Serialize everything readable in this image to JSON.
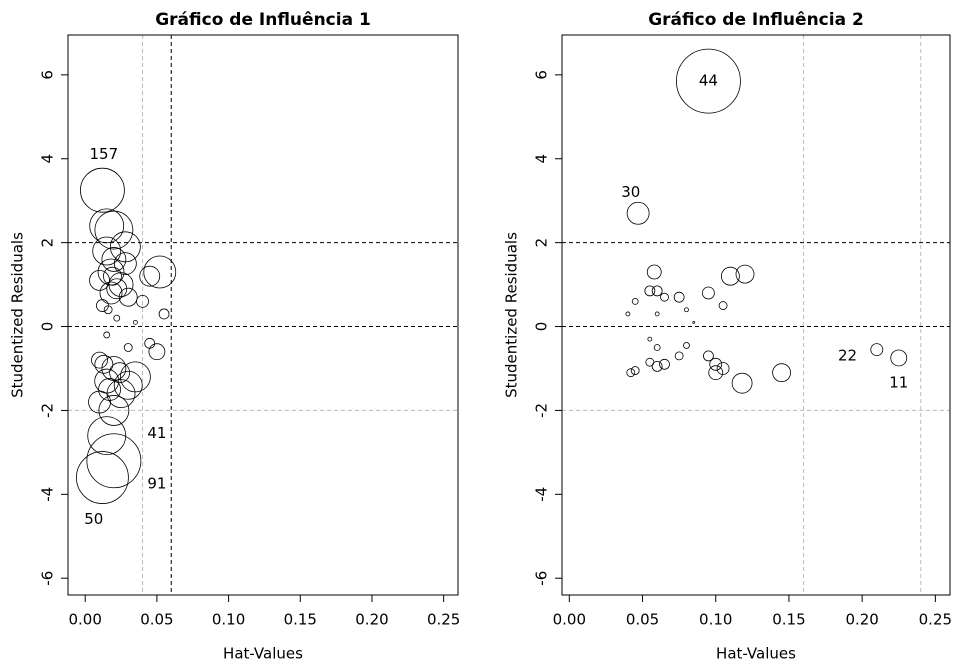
{
  "chart_data": [
    {
      "type": "scatter",
      "title": "Gráfico de Influência 1",
      "xlabel": "Hat-Values",
      "ylabel": "Studentized Residuals",
      "x": [
        0.012,
        0.015,
        0.02,
        0.028,
        0.015,
        0.02,
        0.052,
        0.045,
        0.01,
        0.025,
        0.018,
        0.03,
        0.04,
        0.055,
        0.012,
        0.022,
        0.035,
        0.015,
        0.045,
        0.05,
        0.01,
        0.02,
        0.015,
        0.03,
        0.025,
        0.01,
        0.035,
        0.02,
        0.015,
        0.02,
        0.012,
        0.018,
        0.022,
        0.028,
        0.013,
        0.024,
        0.016,
        0.03,
        0.019,
        0.017
      ],
      "y": [
        3.25,
        2.4,
        2.3,
        1.9,
        1.8,
        1.6,
        1.3,
        1.2,
        1.1,
        1.0,
        0.8,
        0.7,
        0.6,
        0.3,
        0.5,
        0.2,
        0.1,
        -0.2,
        -0.4,
        -0.6,
        -0.8,
        -1.0,
        -1.3,
        -1.4,
        -1.6,
        -1.8,
        -1.2,
        -2.0,
        -2.6,
        -3.2,
        -3.6,
        1.3,
        0.9,
        1.5,
        -0.9,
        -1.1,
        0.4,
        -0.5,
        1.2,
        -1.5
      ],
      "sizes": [
        22,
        17,
        19,
        15,
        14,
        12,
        16,
        10,
        10,
        12,
        11,
        9,
        6,
        5,
        6,
        3,
        2,
        3,
        5,
        8,
        8,
        12,
        12,
        14,
        14,
        11,
        15,
        15,
        19,
        27,
        26,
        13,
        10,
        11,
        9,
        10,
        4,
        4,
        9,
        11
      ],
      "xlim": [
        -0.012,
        0.26
      ],
      "ylim": [
        -6.4,
        6.95
      ],
      "xticks": [
        {
          "value": 0,
          "label": "0.00"
        },
        {
          "value": 0.05,
          "label": "0.05"
        },
        {
          "value": 0.1,
          "label": "0.10"
        },
        {
          "value": 0.15,
          "label": "0.15"
        },
        {
          "value": 0.2,
          "label": "0.20"
        },
        {
          "value": 0.25,
          "label": "0.25"
        }
      ],
      "yticks": [
        -6,
        -4,
        -2,
        0,
        2,
        4,
        6
      ],
      "hlines": [
        {
          "value": 2,
          "color": "#000000"
        },
        {
          "value": 0,
          "color": "#000000"
        },
        {
          "value": -2,
          "color": "#bbbbbb"
        }
      ],
      "vlines": [
        {
          "value": 0.04,
          "color": "#bbbbbb"
        },
        {
          "value": 0.06,
          "color": "#000000"
        }
      ],
      "annotations": [
        {
          "text": "157",
          "x": 0.013,
          "y": 4.1
        },
        {
          "text": "41",
          "x": 0.05,
          "y": -2.55
        },
        {
          "text": "91",
          "x": 0.05,
          "y": -3.75
        },
        {
          "text": "50",
          "x": 0.006,
          "y": -4.6
        }
      ]
    },
    {
      "type": "scatter",
      "title": "Gráfico de Influência 2",
      "xlabel": "Hat-Values",
      "ylabel": "Studentized Residuals",
      "x": [
        0.095,
        0.047,
        0.21,
        0.225,
        0.058,
        0.055,
        0.06,
        0.065,
        0.075,
        0.095,
        0.11,
        0.12,
        0.105,
        0.045,
        0.04,
        0.06,
        0.08,
        0.085,
        0.055,
        0.06,
        0.08,
        0.075,
        0.095,
        0.1,
        0.105,
        0.1,
        0.118,
        0.145,
        0.065,
        0.06,
        0.055,
        0.045,
        0.042
      ],
      "y": [
        5.85,
        2.7,
        -0.55,
        -0.75,
        1.3,
        0.85,
        0.85,
        0.7,
        0.7,
        0.8,
        1.2,
        1.25,
        0.5,
        0.6,
        0.3,
        0.3,
        0.4,
        0.1,
        -0.3,
        -0.5,
        -0.45,
        -0.7,
        -0.7,
        -0.9,
        -1.0,
        -1.1,
        -1.35,
        -1.1,
        -0.9,
        -0.95,
        -0.85,
        -1.05,
        -1.1
      ],
      "sizes": [
        32,
        11,
        6,
        8,
        7,
        5,
        5,
        4,
        5,
        6,
        9,
        9,
        4,
        3,
        2,
        2,
        2,
        1,
        2,
        3,
        3,
        4,
        5,
        6,
        6,
        7,
        10,
        9,
        5,
        5,
        4,
        4,
        4
      ],
      "xlim": [
        -0.005,
        0.26
      ],
      "ylim": [
        -6.4,
        6.95
      ],
      "xticks": [
        {
          "value": 0,
          "label": "0.00"
        },
        {
          "value": 0.05,
          "label": "0.05"
        },
        {
          "value": 0.1,
          "label": "0.10"
        },
        {
          "value": 0.15,
          "label": "0.15"
        },
        {
          "value": 0.2,
          "label": "0.20"
        },
        {
          "value": 0.25,
          "label": "0.25"
        }
      ],
      "yticks": [
        -6,
        -4,
        -2,
        0,
        2,
        4,
        6
      ],
      "hlines": [
        {
          "value": 2,
          "color": "#000000"
        },
        {
          "value": 0,
          "color": "#000000"
        },
        {
          "value": -2,
          "color": "#bbbbbb"
        }
      ],
      "vlines": [
        {
          "value": 0.16,
          "color": "#bbbbbb"
        },
        {
          "value": 0.24,
          "color": "#bbbbbb"
        }
      ],
      "annotations": [
        {
          "text": "44",
          "x": 0.095,
          "y": 5.85
        },
        {
          "text": "30",
          "x": 0.042,
          "y": 3.2
        },
        {
          "text": "22",
          "x": 0.19,
          "y": -0.7
        },
        {
          "text": "11",
          "x": 0.225,
          "y": -1.35
        }
      ]
    }
  ]
}
